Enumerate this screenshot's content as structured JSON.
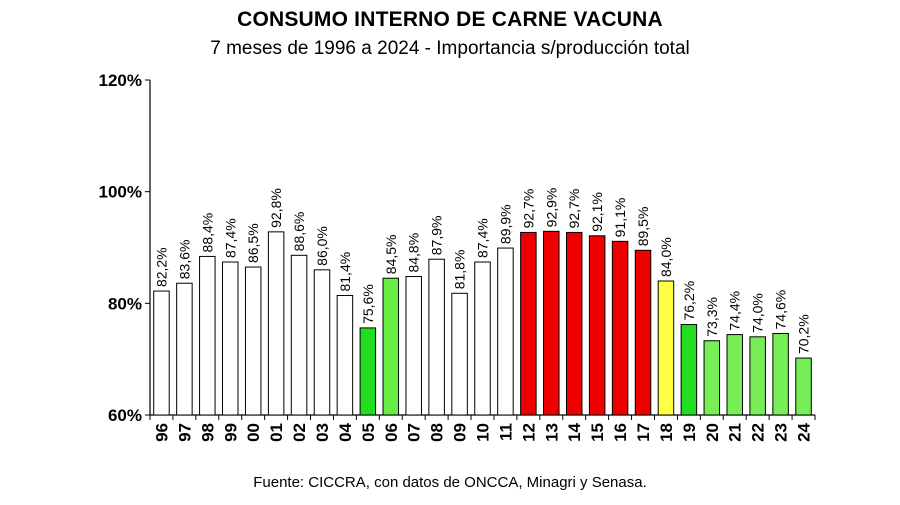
{
  "chart_data": {
    "type": "bar",
    "title": "CONSUMO INTERNO DE CARNE VACUNA",
    "subtitle": "7 meses de 1996 a 2024 - Importancia s/producción total",
    "source": "Fuente: CICCRA, con datos de ONCCA, Minagri y Senasa.",
    "ylim": [
      60,
      120
    ],
    "yticks": [
      "60%",
      "80%",
      "100%",
      "120%"
    ],
    "ytick_values": [
      60,
      80,
      100,
      120
    ],
    "categories": [
      "96",
      "97",
      "98",
      "99",
      "00",
      "01",
      "02",
      "03",
      "04",
      "05",
      "06",
      "07",
      "08",
      "09",
      "10",
      "11",
      "12",
      "13",
      "14",
      "15",
      "16",
      "17",
      "18",
      "19",
      "20",
      "21",
      "22",
      "23",
      "24"
    ],
    "values": [
      82.2,
      83.6,
      88.4,
      87.4,
      86.5,
      92.8,
      88.6,
      86.0,
      81.4,
      75.6,
      84.5,
      84.8,
      87.9,
      81.8,
      87.4,
      89.9,
      92.7,
      92.9,
      92.7,
      92.1,
      91.1,
      89.5,
      84.0,
      76.2,
      73.3,
      74.4,
      74.0,
      74.6,
      70.2
    ],
    "labels": [
      "82,2%",
      "83,6%",
      "88,4%",
      "87,4%",
      "86,5%",
      "92,8%",
      "88,6%",
      "86,0%",
      "81,4%",
      "75,6%",
      "84,5%",
      "84,8%",
      "87,9%",
      "81,8%",
      "87,4%",
      "89,9%",
      "92,7%",
      "92,9%",
      "92,7%",
      "92,1%",
      "91,1%",
      "89,5%",
      "84,0%",
      "76,2%",
      "73,3%",
      "74,4%",
      "74,0%",
      "74,6%",
      "70,2%"
    ],
    "bar_colors": [
      "#ffffff",
      "#ffffff",
      "#ffffff",
      "#ffffff",
      "#ffffff",
      "#ffffff",
      "#ffffff",
      "#ffffff",
      "#ffffff",
      "#22dd22",
      "#66ee44",
      "#ffffff",
      "#ffffff",
      "#ffffff",
      "#ffffff",
      "#ffffff",
      "#ee0000",
      "#ee0000",
      "#ee0000",
      "#ee0000",
      "#ee0000",
      "#ee0000",
      "#ffff44",
      "#22dd22",
      "#77ee55",
      "#77ee55",
      "#77ee55",
      "#77ee55",
      "#77ee55"
    ],
    "grid": false,
    "legend": "none"
  }
}
